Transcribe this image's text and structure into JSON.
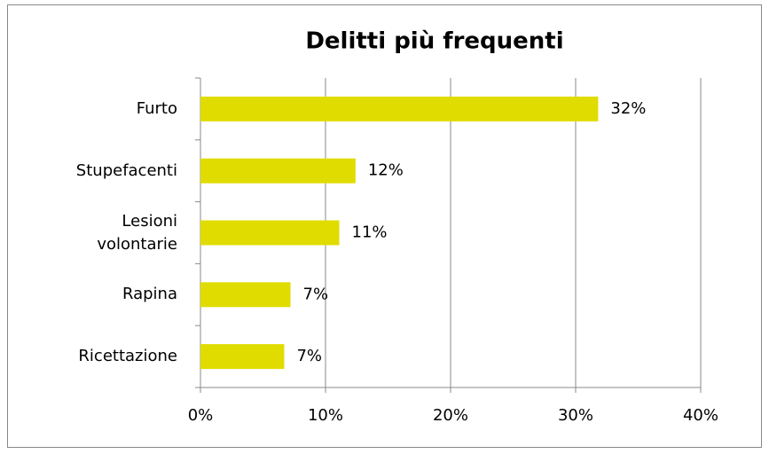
{
  "chart_data": {
    "type": "bar",
    "orientation": "horizontal",
    "title": "Delitti più frequenti",
    "categories": [
      "Furto",
      "Stupefacenti",
      "Lesioni volontarie",
      "Rapina",
      "Ricettazione"
    ],
    "values": [
      31.8,
      12.4,
      11.1,
      7.2,
      6.7
    ],
    "value_labels": [
      "32%",
      "12%",
      "11%",
      "7%",
      "7%"
    ],
    "color": "#e0dc00",
    "xlim": [
      0,
      40
    ],
    "xticks": [
      {
        "value": 0,
        "label": "0%"
      },
      {
        "value": 10,
        "label": "10%"
      },
      {
        "value": 20,
        "label": "20%"
      },
      {
        "value": 30,
        "label": "30%"
      },
      {
        "value": 40,
        "label": "40%"
      }
    ],
    "grid": true
  }
}
